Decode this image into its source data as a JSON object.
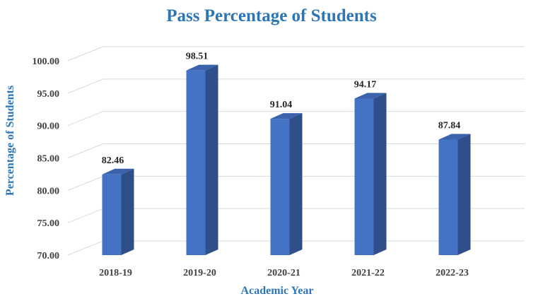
{
  "chart_data": {
    "type": "bar",
    "title": "Pass Percentage of Students",
    "xlabel": "Academic Year",
    "ylabel": "Percentage of Students",
    "categories": [
      "2018-19",
      "2019-20",
      "2020-21",
      "2021-22",
      "2022-23"
    ],
    "values": [
      82.46,
      98.51,
      91.04,
      94.17,
      87.84
    ],
    "value_labels": [
      "82.46",
      "98.51",
      "91.04",
      "94.17",
      "87.84"
    ],
    "ylim": [
      70,
      100
    ],
    "yticks": [
      "70.00",
      "75.00",
      "80.00",
      "85.00",
      "90.00",
      "95.00",
      "100.00"
    ],
    "grid": true,
    "legend": "none",
    "style": "3d-column",
    "colors": {
      "bar_front": "#4472c4",
      "bar_side": "#2f4f8a",
      "bar_top": "#3a62ad",
      "title": "#2e75b6",
      "grid": "#d9d9d9"
    }
  }
}
